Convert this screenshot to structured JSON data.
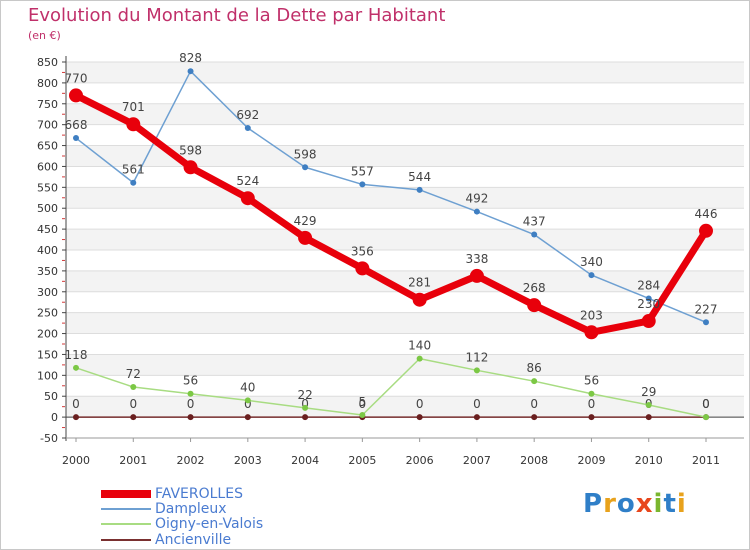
{
  "title": "Evolution du Montant de la Dette par Habitant",
  "unit": "(en €)",
  "logo": {
    "text": "Proxiti",
    "colors": [
      "#2f7fc8",
      "#e8a21c",
      "#2f7fc8",
      "#e8461c",
      "#7ab62e",
      "#2f7fc8",
      "#e8a21c"
    ]
  },
  "chart_data": {
    "type": "line",
    "title": "Evolution du Montant de la Dette par Habitant",
    "subtitle": "(en €)",
    "x": [
      "2000",
      "2001",
      "2002",
      "2003",
      "2004",
      "2005",
      "2006",
      "2007",
      "2008",
      "2009",
      "2010",
      "2011"
    ],
    "ylim": [
      -50,
      850
    ],
    "yticks": [
      -50,
      0,
      50,
      100,
      150,
      200,
      250,
      300,
      350,
      400,
      450,
      500,
      550,
      600,
      650,
      700,
      750,
      800,
      850
    ],
    "grid": true,
    "legend_position": "bottom-left",
    "series": [
      {
        "name": "FAVEROLLES",
        "color": "#e8000b",
        "values": [
          770,
          701,
          598,
          524,
          429,
          356,
          281,
          338,
          268,
          203,
          230,
          446
        ],
        "labels": [
          "770",
          "701",
          "598",
          "524",
          "429",
          "356",
          "281",
          "338",
          "268",
          "203",
          "230",
          "446"
        ]
      },
      {
        "name": "Dampleux",
        "color": "#6ea0d2",
        "values": [
          668,
          561,
          828,
          692,
          598,
          557,
          544,
          492,
          437,
          340,
          284,
          227
        ],
        "labels": [
          "668",
          "561",
          "828",
          "692",
          "598",
          "557",
          "544",
          "492",
          "437",
          "340",
          "284",
          "227"
        ]
      },
      {
        "name": "Oigny-en-Valois",
        "color": "#a8dc82",
        "values": [
          118,
          72,
          56,
          40,
          22,
          5,
          140,
          112,
          86,
          56,
          29,
          0
        ],
        "labels": [
          "118",
          "72",
          "56",
          "40",
          "22",
          "5",
          "140",
          "112",
          "86",
          "56",
          "29",
          "0"
        ]
      },
      {
        "name": "Ancienville",
        "color": "#7a3030",
        "values": [
          0,
          0,
          0,
          0,
          0,
          0,
          0,
          0,
          0,
          0,
          0,
          0
        ],
        "labels": [
          "0",
          "0",
          "0",
          "0",
          "0",
          "0",
          "0",
          "0",
          "0",
          "0",
          "0",
          "0"
        ]
      }
    ]
  }
}
